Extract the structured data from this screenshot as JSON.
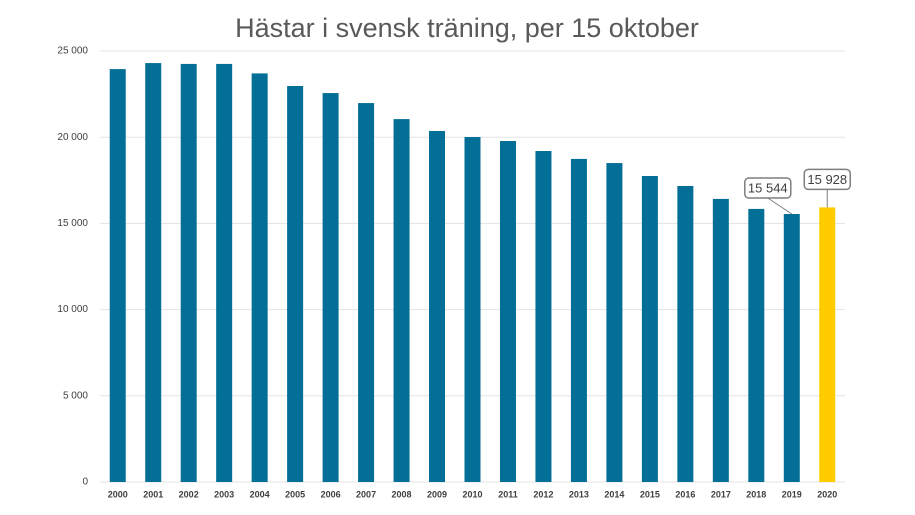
{
  "chart_data": {
    "type": "bar",
    "title": "Hästar i svensk träning, per 15 oktober",
    "categories": [
      "2000",
      "2001",
      "2002",
      "2003",
      "2004",
      "2005",
      "2006",
      "2007",
      "2008",
      "2009",
      "2010",
      "2011",
      "2012",
      "2013",
      "2014",
      "2015",
      "2016",
      "2017",
      "2018",
      "2019",
      "2020"
    ],
    "values": [
      23950,
      24300,
      24250,
      24250,
      23700,
      22970,
      22560,
      21980,
      21050,
      20360,
      20010,
      19780,
      19200,
      18740,
      18500,
      17750,
      17170,
      16420,
      15840,
      15544,
      15928
    ],
    "value_labels": [
      null,
      null,
      null,
      null,
      null,
      null,
      null,
      null,
      null,
      null,
      null,
      null,
      null,
      null,
      null,
      null,
      null,
      null,
      null,
      "15 544",
      "15 928"
    ],
    "colors": [
      "#036e96",
      "#036e96",
      "#036e96",
      "#036e96",
      "#036e96",
      "#036e96",
      "#036e96",
      "#036e96",
      "#036e96",
      "#036e96",
      "#036e96",
      "#036e96",
      "#036e96",
      "#036e96",
      "#036e96",
      "#036e96",
      "#036e96",
      "#036e96",
      "#036e96",
      "#036e96",
      "#ffcc00"
    ],
    "ylim": [
      0,
      25000
    ],
    "yticks": [
      0,
      {
        "value": 5000,
        "label": "5 000"
      },
      {
        "value": 10000,
        "label": "10 000"
      },
      {
        "value": 15000,
        "label": "15 000"
      },
      {
        "value": 20000,
        "label": "20 000"
      },
      {
        "value": 25000,
        "label": "25 000"
      }
    ],
    "grid": true
  }
}
